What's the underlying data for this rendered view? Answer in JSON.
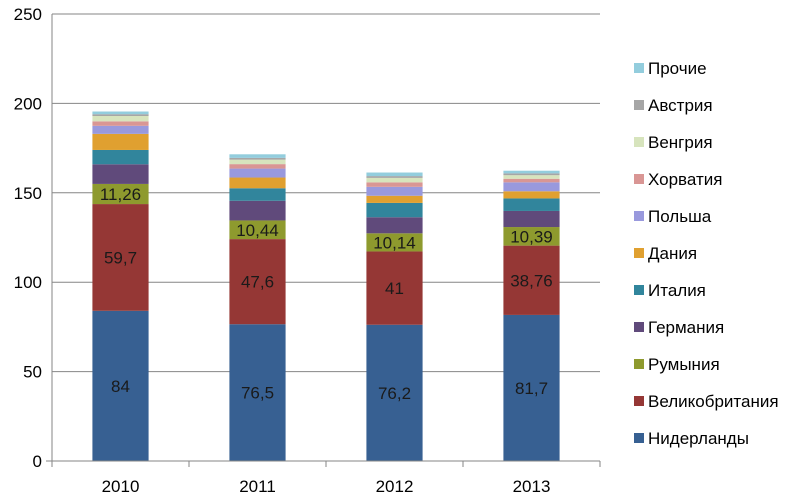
{
  "chart_data": {
    "type": "bar",
    "stacked": true,
    "categories": [
      "2010",
      "2011",
      "2012",
      "2013"
    ],
    "ylim": [
      0,
      250
    ],
    "yticks": [
      0,
      50,
      100,
      150,
      200,
      250
    ],
    "grid": true,
    "legend_position": "right",
    "series": [
      {
        "name": "Нидерланды",
        "color": "#376092",
        "values": [
          84,
          76.5,
          76.2,
          81.7
        ],
        "labels": [
          "84",
          "76,5",
          "76,2",
          "81,7"
        ]
      },
      {
        "name": "Великобритания",
        "color": "#953735",
        "values": [
          59.7,
          47.6,
          41,
          38.76
        ],
        "labels": [
          "59,7",
          "47,6",
          "41",
          "38,76"
        ]
      },
      {
        "name": "Румыния",
        "color": "#8E9A2E",
        "values": [
          11.26,
          10.44,
          10.14,
          10.39
        ],
        "labels": [
          "11,26",
          "10,44",
          "10,14",
          "10,39"
        ]
      },
      {
        "name": "Германия",
        "color": "#604A7B",
        "values": [
          11,
          11,
          9,
          9
        ]
      },
      {
        "name": "Италия",
        "color": "#31859C",
        "values": [
          8,
          7,
          8,
          7
        ]
      },
      {
        "name": "Дания",
        "color": "#E0A030",
        "values": [
          9,
          6,
          4,
          4
        ]
      },
      {
        "name": "Польша",
        "color": "#9999DD",
        "values": [
          4.5,
          5,
          5,
          5
        ]
      },
      {
        "name": "Хорватия",
        "color": "#D99694",
        "values": [
          2.5,
          2.5,
          2.5,
          2
        ]
      },
      {
        "name": "Венгрия",
        "color": "#D7E4BD",
        "values": [
          3,
          2.5,
          2.5,
          2
        ]
      },
      {
        "name": "Австрия",
        "color": "#A6A6A6",
        "values": [
          1,
          1,
          1,
          1
        ]
      },
      {
        "name": "Прочие",
        "color": "#93CDDD",
        "values": [
          1.5,
          2,
          2,
          1.5
        ]
      }
    ]
  }
}
